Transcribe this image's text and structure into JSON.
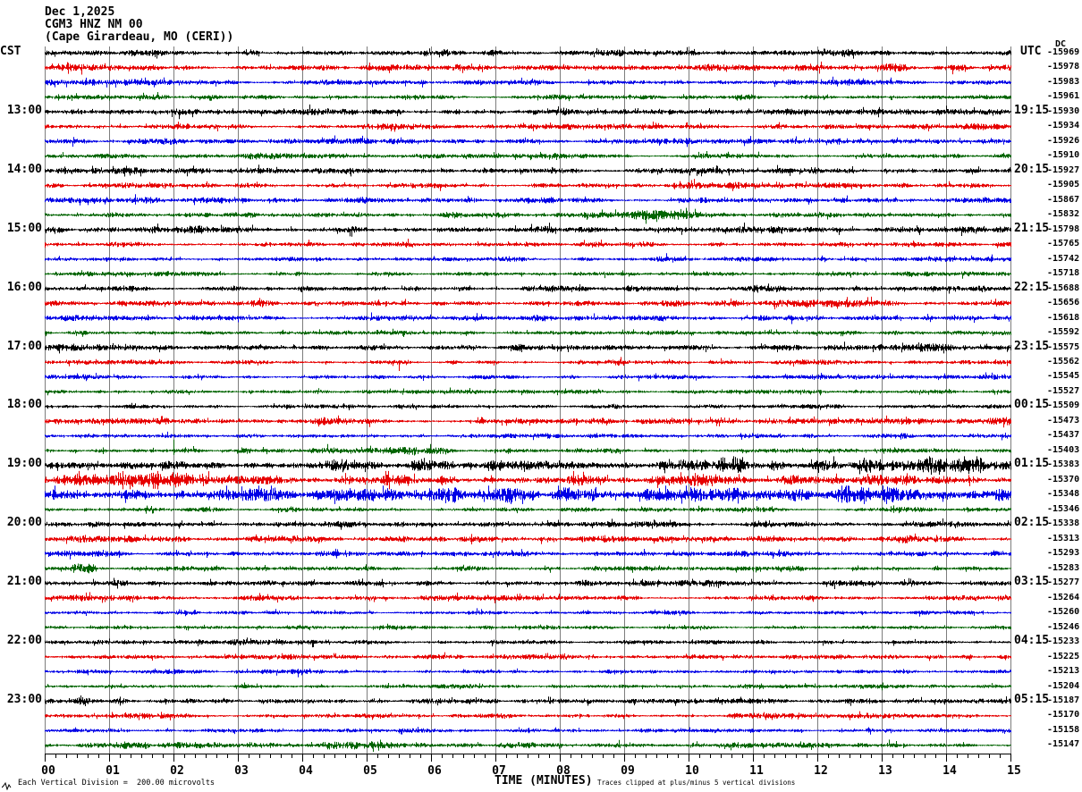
{
  "header": {
    "date": "Dec 1,2025",
    "station": "CGM3 HNZ NM 00",
    "location": "(Cape Girardeau, MO (CERI))"
  },
  "left_axis": {
    "tz": "CST"
  },
  "right_axis": {
    "tz": "UTC",
    "dc_header": "DC"
  },
  "footer": {
    "time_axis_label": "TIME (MINUTES)",
    "scale_note": "Each Vertical Division =  200.00 microvolts",
    "clip_note": "Traces clipped at plus/minus 5 vertical divisions"
  },
  "chart_data": {
    "type": "line",
    "subtype": "helicorder-seismogram",
    "title": "CGM3 HNZ NM 00 (Cape Girardeau, MO (CERI)) Dec 1,2025",
    "x_axis": {
      "label": "TIME (MINUTES)",
      "range": [
        0,
        15
      ],
      "tick_labels": [
        "00",
        "01",
        "02",
        "03",
        "04",
        "05",
        "06",
        "07",
        "08",
        "09",
        "10",
        "11",
        "12",
        "13",
        "14",
        "15"
      ],
      "minor_ticks_per_major": 6,
      "grid": true
    },
    "minutes_per_row": 15,
    "row_count": 48,
    "microvolts_per_division": 200.0,
    "clip_divisions": 5,
    "colors": {
      "black": "#000000",
      "red": "#e60000",
      "blue": "#0000e6",
      "green": "#006400",
      "grid": "#7d7d7d"
    },
    "rows": [
      {
        "color": "black",
        "cst": "",
        "utc": "",
        "dc": -15969,
        "amp": 2.2,
        "bursts": [],
        "spikes": []
      },
      {
        "color": "red",
        "cst": "",
        "utc": "",
        "dc": -15978,
        "amp": 2.2,
        "bursts": [],
        "spikes": []
      },
      {
        "color": "blue",
        "cst": "",
        "utc": "",
        "dc": -15983,
        "amp": 2.0,
        "bursts": [],
        "spikes": []
      },
      {
        "color": "green",
        "cst": "",
        "utc": "",
        "dc": -15961,
        "amp": 1.6,
        "bursts": [],
        "spikes": []
      },
      {
        "color": "black",
        "cst": "13:00",
        "utc": "19:15",
        "dc": -15930,
        "amp": 2.2,
        "bursts": [],
        "spikes": []
      },
      {
        "color": "red",
        "cst": "",
        "utc": "",
        "dc": -15934,
        "amp": 2.0,
        "bursts": [],
        "spikes": []
      },
      {
        "color": "blue",
        "cst": "",
        "utc": "",
        "dc": -15926,
        "amp": 2.0,
        "bursts": [],
        "spikes": []
      },
      {
        "color": "green",
        "cst": "",
        "utc": "",
        "dc": -15910,
        "amp": 1.6,
        "bursts": [
          [
            3.1,
            3.9,
            2.8
          ]
        ],
        "spikes": []
      },
      {
        "color": "black",
        "cst": "14:00",
        "utc": "20:15",
        "dc": -15927,
        "amp": 2.2,
        "bursts": [],
        "spikes": []
      },
      {
        "color": "red",
        "cst": "",
        "utc": "",
        "dc": -15905,
        "amp": 2.0,
        "bursts": [],
        "spikes": []
      },
      {
        "color": "blue",
        "cst": "",
        "utc": "",
        "dc": -15867,
        "amp": 2.0,
        "bursts": [],
        "spikes": []
      },
      {
        "color": "green",
        "cst": "",
        "utc": "",
        "dc": -15832,
        "amp": 1.8,
        "bursts": [
          [
            9.1,
            10.3,
            3.0
          ]
        ],
        "spikes": [
          [
            9.5,
            4,
            8
          ]
        ]
      },
      {
        "color": "black",
        "cst": "15:00",
        "utc": "21:15",
        "dc": -15798,
        "amp": 2.2,
        "bursts": [],
        "spikes": []
      },
      {
        "color": "red",
        "cst": "",
        "utc": "",
        "dc": -15765,
        "amp": 2.0,
        "bursts": [],
        "spikes": []
      },
      {
        "color": "blue",
        "cst": "",
        "utc": "",
        "dc": -15742,
        "amp": 1.8,
        "bursts": [],
        "spikes": []
      },
      {
        "color": "green",
        "cst": "",
        "utc": "",
        "dc": -15718,
        "amp": 1.6,
        "bursts": [],
        "spikes": []
      },
      {
        "color": "black",
        "cst": "16:00",
        "utc": "22:15",
        "dc": -15688,
        "amp": 2.2,
        "bursts": [],
        "spikes": []
      },
      {
        "color": "red",
        "cst": "",
        "utc": "",
        "dc": -15656,
        "amp": 2.2,
        "bursts": [],
        "spikes": []
      },
      {
        "color": "blue",
        "cst": "",
        "utc": "",
        "dc": -15618,
        "amp": 2.0,
        "bursts": [],
        "spikes": []
      },
      {
        "color": "green",
        "cst": "",
        "utc": "",
        "dc": -15592,
        "amp": 1.6,
        "bursts": [],
        "spikes": []
      },
      {
        "color": "black",
        "cst": "17:00",
        "utc": "23:15",
        "dc": -15575,
        "amp": 2.2,
        "bursts": [],
        "spikes": []
      },
      {
        "color": "red",
        "cst": "",
        "utc": "",
        "dc": -15562,
        "amp": 1.6,
        "bursts": [],
        "spikes": [
          [
            5.5,
            2,
            10
          ]
        ]
      },
      {
        "color": "blue",
        "cst": "",
        "utc": "",
        "dc": -15545,
        "amp": 1.6,
        "bursts": [],
        "spikes": []
      },
      {
        "color": "green",
        "cst": "",
        "utc": "",
        "dc": -15527,
        "amp": 1.4,
        "bursts": [],
        "spikes": []
      },
      {
        "color": "black",
        "cst": "18:00",
        "utc": "00:15",
        "dc": -15509,
        "amp": 1.4,
        "bursts": [],
        "spikes": []
      },
      {
        "color": "red",
        "cst": "",
        "utc": "",
        "dc": -15473,
        "amp": 2.0,
        "bursts": [],
        "spikes": []
      },
      {
        "color": "blue",
        "cst": "",
        "utc": "",
        "dc": -15437,
        "amp": 1.6,
        "bursts": [],
        "spikes": []
      },
      {
        "color": "green",
        "cst": "",
        "utc": "",
        "dc": -15403,
        "amp": 1.8,
        "bursts": [
          [
            3.5,
            6.3,
            3.2
          ]
        ],
        "spikes": [
          [
            2.0,
            12,
            5
          ]
        ]
      },
      {
        "color": "black",
        "cst": "19:00",
        "utc": "01:15",
        "dc": -15383,
        "amp": 2.6,
        "bursts": [
          [
            3.0,
            9.4,
            3.6
          ],
          [
            9.4,
            12.3,
            7.5
          ],
          [
            12.6,
            15,
            7.0
          ]
        ],
        "spikes": []
      },
      {
        "color": "red",
        "cst": "",
        "utc": "",
        "dc": -15370,
        "amp": 4.0,
        "bursts": [
          [
            0,
            2.6,
            7.0
          ],
          [
            8.0,
            12.5,
            5.0
          ]
        ],
        "spikes": []
      },
      {
        "color": "blue",
        "cst": "",
        "utc": "",
        "dc": -15348,
        "amp": 4.5,
        "bursts": [
          [
            5.5,
            9.5,
            6.0
          ],
          [
            12.1,
            13.5,
            6.5
          ]
        ],
        "spikes": []
      },
      {
        "color": "green",
        "cst": "",
        "utc": "",
        "dc": -15346,
        "amp": 1.6,
        "bursts": [],
        "spikes": []
      },
      {
        "color": "black",
        "cst": "20:00",
        "utc": "02:15",
        "dc": -15338,
        "amp": 2.0,
        "bursts": [],
        "spikes": []
      },
      {
        "color": "red",
        "cst": "",
        "utc": "",
        "dc": -15313,
        "amp": 2.2,
        "bursts": [],
        "spikes": []
      },
      {
        "color": "blue",
        "cst": "",
        "utc": "",
        "dc": -15293,
        "amp": 1.8,
        "bursts": [],
        "spikes": []
      },
      {
        "color": "green",
        "cst": "",
        "utc": "",
        "dc": -15283,
        "amp": 1.6,
        "bursts": [
          [
            0.4,
            0.8,
            4.5
          ]
        ],
        "spikes": []
      },
      {
        "color": "black",
        "cst": "21:00",
        "utc": "03:15",
        "dc": -15277,
        "amp": 2.0,
        "bursts": [],
        "spikes": []
      },
      {
        "color": "red",
        "cst": "",
        "utc": "",
        "dc": -15264,
        "amp": 2.0,
        "bursts": [],
        "spikes": []
      },
      {
        "color": "blue",
        "cst": "",
        "utc": "",
        "dc": -15260,
        "amp": 1.3,
        "bursts": [],
        "spikes": []
      },
      {
        "color": "green",
        "cst": "",
        "utc": "",
        "dc": -15246,
        "amp": 1.3,
        "bursts": [],
        "spikes": []
      },
      {
        "color": "black",
        "cst": "22:00",
        "utc": "04:15",
        "dc": -15233,
        "amp": 1.6,
        "bursts": [],
        "spikes": []
      },
      {
        "color": "red",
        "cst": "",
        "utc": "",
        "dc": -15225,
        "amp": 1.6,
        "bursts": [],
        "spikes": []
      },
      {
        "color": "blue",
        "cst": "",
        "utc": "",
        "dc": -15213,
        "amp": 1.5,
        "bursts": [],
        "spikes": []
      },
      {
        "color": "green",
        "cst": "",
        "utc": "",
        "dc": -15204,
        "amp": 1.3,
        "bursts": [],
        "spikes": []
      },
      {
        "color": "black",
        "cst": "23:00",
        "utc": "05:15",
        "dc": -15187,
        "amp": 2.0,
        "bursts": [],
        "spikes": []
      },
      {
        "color": "red",
        "cst": "",
        "utc": "",
        "dc": -15170,
        "amp": 1.6,
        "bursts": [],
        "spikes": []
      },
      {
        "color": "blue",
        "cst": "",
        "utc": "",
        "dc": -15158,
        "amp": 1.4,
        "bursts": [],
        "spikes": []
      },
      {
        "color": "green",
        "cst": "",
        "utc": "",
        "dc": -15147,
        "amp": 2.0,
        "bursts": [
          [
            0,
            6.2,
            2.8
          ]
        ],
        "spikes": []
      }
    ]
  }
}
